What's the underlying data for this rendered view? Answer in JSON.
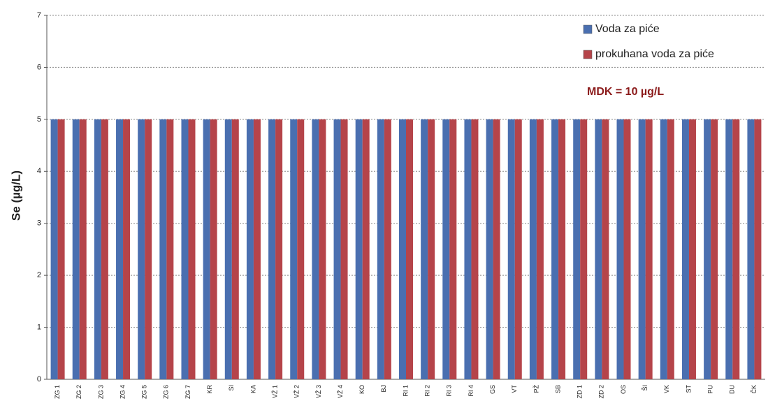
{
  "chart_data": {
    "type": "bar",
    "y_label": "Se (µg/L)",
    "annotation": "MDK = 10 µg/L",
    "categories": [
      "ZG 1",
      "ZG 2",
      "ZG 3",
      "ZG 4",
      "ZG 5",
      "ZG 6",
      "ZG 7",
      "KR",
      "SI",
      "KA",
      "VŽ 1",
      "VŽ 2",
      "VŽ 3",
      "VŽ 4",
      "KO",
      "BJ",
      "RI 1",
      "RI 2",
      "RI 3",
      "RI 4",
      "GS",
      "VT",
      "PŽ",
      "SB",
      "ZD 1",
      "ZD 2",
      "OS",
      "ŠI",
      "VK",
      "ST",
      "PU",
      "DU",
      "ČK"
    ],
    "series": [
      {
        "name": "Voda za piće",
        "color": "#4a6fb0",
        "values": [
          5,
          5,
          5,
          5,
          5,
          5,
          5,
          5,
          5,
          5,
          5,
          5,
          5,
          5,
          5,
          5,
          5,
          5,
          5,
          5,
          5,
          5,
          5,
          5,
          5,
          5,
          5,
          5,
          5,
          5,
          5,
          5,
          5
        ]
      },
      {
        "name": "prokuhana voda za piće",
        "color": "#b5444a",
        "values": [
          5,
          5,
          5,
          5,
          5,
          5,
          5,
          5,
          5,
          5,
          5,
          5,
          5,
          5,
          5,
          5,
          5,
          5,
          5,
          5,
          5,
          5,
          5,
          5,
          5,
          5,
          5,
          5,
          5,
          5,
          5,
          5,
          5
        ]
      }
    ],
    "ylim": [
      0,
      7
    ],
    "yticks": [
      0,
      1,
      2,
      3,
      4,
      5,
      6,
      7
    ],
    "grid": true,
    "legend": "top-right"
  }
}
